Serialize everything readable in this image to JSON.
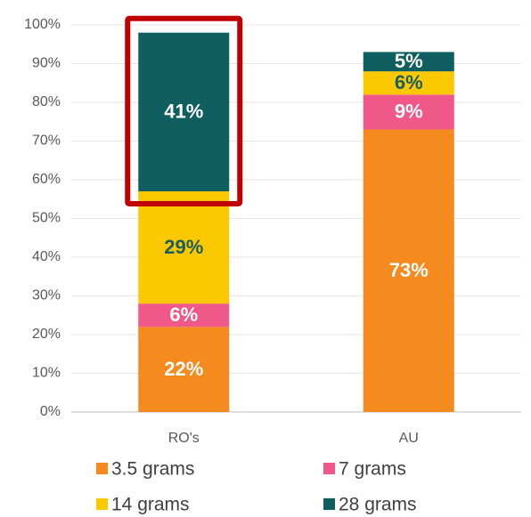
{
  "chart_data": {
    "type": "stacked_bar",
    "categories": [
      "RO's",
      "AU"
    ],
    "series": [
      {
        "name": "3.5 grams",
        "color": "#f58a1f",
        "label_color": "#ffffff",
        "values": [
          22,
          73
        ],
        "value_labels": [
          "22%",
          "73%"
        ]
      },
      {
        "name": "7 grams",
        "color": "#f0588a",
        "label_color": "#ffffff",
        "values": [
          6,
          9
        ],
        "value_labels": [
          "6%",
          "9%"
        ]
      },
      {
        "name": "14 grams",
        "color": "#fcc800",
        "label_color": "#1a5e5e",
        "values": [
          29,
          6
        ],
        "value_labels": [
          "29%",
          "6%"
        ]
      },
      {
        "name": "28 grams",
        "color": "#0f5e60",
        "label_color": "#ffffff",
        "values": [
          41,
          5
        ],
        "value_labels": [
          "41%",
          "5%"
        ]
      }
    ],
    "ylim": [
      0,
      100
    ],
    "yticks": [
      {
        "value": 0,
        "label": "0%"
      },
      {
        "value": 10,
        "label": "10%"
      },
      {
        "value": 20,
        "label": "20%"
      },
      {
        "value": 30,
        "label": "30%"
      },
      {
        "value": 40,
        "label": "40%"
      },
      {
        "value": 50,
        "label": "50%"
      },
      {
        "value": 60,
        "label": "60%"
      },
      {
        "value": 70,
        "label": "70%"
      },
      {
        "value": 80,
        "label": "80%"
      },
      {
        "value": 90,
        "label": "90%"
      },
      {
        "value": {
          "value": 100,
          "label": "100%"
        },
        "label": "100%"
      }
    ],
    "grid": true,
    "highlight": {
      "category": 0,
      "series": 3,
      "color": "#c00000"
    }
  }
}
